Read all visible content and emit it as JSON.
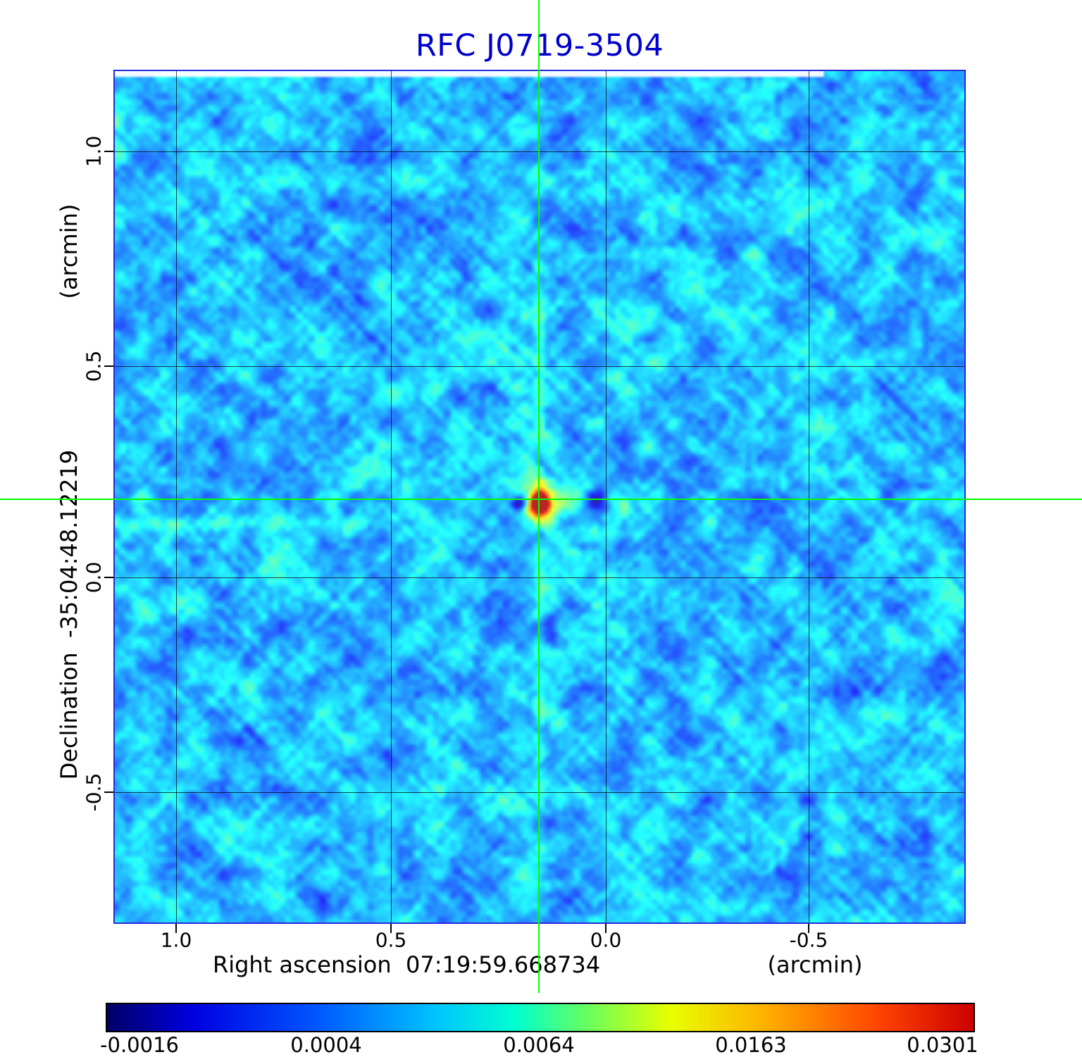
{
  "title": {
    "text": "RFC J0719-3504"
  },
  "colors": {
    "title": "#0000cd",
    "crosshair": "#00ff00",
    "frame": "#2929d6",
    "grid": "#000000"
  },
  "axes": {
    "y": {
      "unit_label": "(arcmin)",
      "axis_label": "Declination  -35:04:48.12219",
      "ticks": [
        "1.0",
        "0.5",
        "0.0",
        "-0.5"
      ]
    },
    "x": {
      "axis_label": "Right ascension  07:19:59.668734",
      "unit_label": "(arcmin)",
      "ticks": [
        "1.0",
        "0.5",
        "0.0",
        "-0.5"
      ]
    }
  },
  "colorbar": {
    "colormap": "jet",
    "ticks": [
      "-0.0016",
      "0.0004",
      "0.0064",
      "0.0163",
      "0.0301"
    ]
  },
  "chart_data": {
    "type": "heatmap",
    "title": "RFC J0719-3504",
    "xlabel": "Right ascension 07:19:59.668734 (arcmin)",
    "ylabel": "Declination -35:04:48.12219 (arcmin)",
    "x_tick_values": [
      1.0,
      0.5,
      0.0,
      -0.5
    ],
    "y_tick_values": [
      1.0,
      0.5,
      0.0,
      -0.5
    ],
    "xlim": [
      1.15,
      -0.87
    ],
    "ylim": [
      -0.8,
      1.19
    ],
    "grid": true,
    "colormap": "jet",
    "colorbar_tick_values": [
      -0.0016,
      0.0004,
      0.0064,
      0.0163,
      0.0301
    ],
    "value_range": [
      -0.0016,
      0.0301
    ],
    "peak_value": 0.0301,
    "source_position_marker": {
      "x_arcmin": 0.16,
      "y_arcmin": 0.18,
      "marker": "green-crosshair"
    },
    "description": "Radio interferometric map: bright compact source (red/orange core with yellow-green halo and dark-blue negative sidelobes) at the green crosshair intersection, over a mottled light-blue noise background with diagonal sidelobe stripes"
  }
}
